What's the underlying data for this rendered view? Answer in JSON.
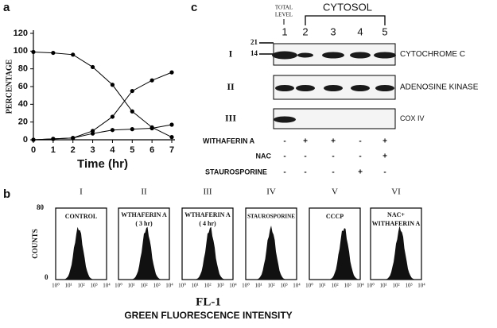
{
  "chart_data": {
    "type": "line",
    "panel_label": "a",
    "xlabel": "Time (hr)",
    "ylabel": "PERCENTAGE",
    "x": [
      0,
      1,
      2,
      3,
      4,
      5,
      6,
      7
    ],
    "series": [
      {
        "color": "#000000",
        "values": [
          99,
          98,
          96,
          82,
          62,
          32,
          14,
          3
        ]
      },
      {
        "color": "#000000",
        "values": [
          0,
          1,
          2,
          10,
          26,
          55,
          67,
          76
        ]
      },
      {
        "color": "#000000",
        "values": [
          0,
          1,
          2,
          7,
          11,
          12,
          13,
          17
        ]
      }
    ],
    "xlim": [
      0,
      7
    ],
    "ylim": [
      0,
      120
    ],
    "xticks": [
      0,
      1,
      2,
      3,
      4,
      5,
      6,
      7
    ],
    "yticks": [
      0,
      20,
      40,
      60,
      80,
      100,
      120
    ]
  },
  "panel_b": {
    "panel_label": "b",
    "ylabel": "COUNTS",
    "y_top": "80",
    "y_bottom": "0",
    "x_ticks": [
      "10⁰",
      "10¹",
      "10²",
      "10³",
      "10⁴"
    ],
    "plots": [
      {
        "numeral": "I",
        "label": [
          "CONTROL"
        ]
      },
      {
        "numeral": "II",
        "label": [
          "WTHAFERIN A",
          "( 3 hr)"
        ]
      },
      {
        "numeral": "III",
        "label": [
          "WTHAFERIN A",
          "( 4 hr)"
        ]
      },
      {
        "numeral": "IV",
        "label": [
          "STAUROSPORINE"
        ]
      },
      {
        "numeral": "V",
        "label": [
          "CCCP"
        ]
      },
      {
        "numeral": "VI",
        "label": [
          "NAC+",
          "WITHAFERIN A"
        ]
      }
    ],
    "xlabel": "FL-1",
    "caption": "GREEN FLUORESCENCE INTENSITY"
  },
  "panel_c": {
    "panel_label": "c",
    "total": [
      "TOTAL",
      "LEVEL"
    ],
    "cytosol": "CYTOSOL",
    "lanes": [
      "1",
      "2",
      "3",
      "4",
      "5"
    ],
    "markers": [
      "21",
      "14"
    ],
    "blots": [
      {
        "numeral": "I",
        "label": "CYTOCHROME C"
      },
      {
        "numeral": "II",
        "label": "ADENOSINE KINASE"
      },
      {
        "numeral": "III",
        "label": "COX IV"
      }
    ],
    "treatments": [
      {
        "name": "WITHAFERIN A",
        "signs": [
          "-",
          "+",
          "+",
          "-",
          "+"
        ]
      },
      {
        "name": "NAC",
        "signs": [
          "-",
          "-",
          "-",
          "-",
          "+"
        ]
      },
      {
        "name": "STAUROSPORINE",
        "signs": [
          "-",
          "-",
          "-",
          "+",
          "-"
        ]
      }
    ]
  }
}
